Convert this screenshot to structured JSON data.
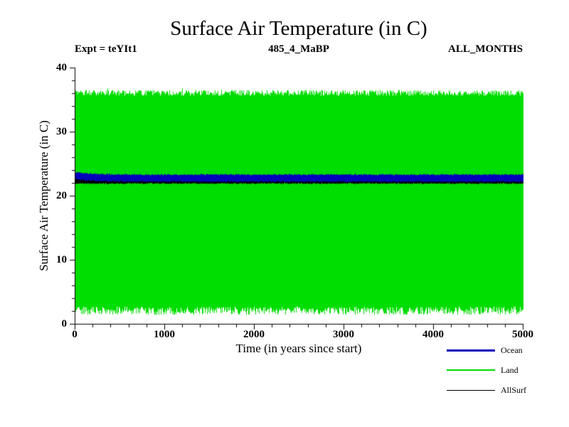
{
  "chart_data": {
    "type": "line",
    "title": "Surface Air Temperature (in C)",
    "xlabel": "Time (in years since start)",
    "ylabel": "Surface Air Temperature (in C)",
    "annotations": {
      "expt": "Expt = teYIt1",
      "run": "485_4_MaBP",
      "months": "ALL_MONTHS"
    },
    "xlim": [
      0,
      5000
    ],
    "ylim": [
      0,
      40
    ],
    "x_ticks": [
      0,
      1000,
      2000,
      3000,
      4000,
      5000
    ],
    "y_ticks": [
      0,
      10,
      20,
      30,
      40
    ],
    "x_major_step": 1000,
    "x_minor_step": 200,
    "y_major_step": 10,
    "y_minor_step": 2,
    "grid": false,
    "legend_position": "below-right",
    "series": [
      {
        "name": "Ocean",
        "color": "#0000bb",
        "line_width": 3,
        "band_min": 22.2,
        "band_max": 23.3,
        "start_peak": 23.7,
        "description": "narrow noisy band, slight initial decline then flat"
      },
      {
        "name": "Land",
        "color": "#00dd00",
        "line_width": 2,
        "band_min": 1.5,
        "band_max": 36.3,
        "description": "wide noisy seasonal band filling plot, flat envelope"
      },
      {
        "name": "AllSurf",
        "color": "#000000",
        "line_width": 1,
        "band_min": 21.9,
        "band_max": 23.0,
        "description": "thin band mostly hidden beneath Ocean band"
      }
    ]
  }
}
